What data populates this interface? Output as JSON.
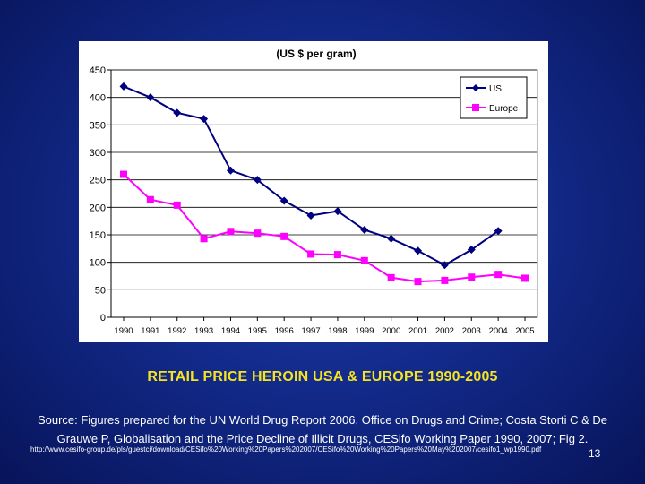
{
  "chart_data": {
    "type": "line",
    "title": "(US $ per gram)",
    "xlabel": "",
    "ylabel": "",
    "categories": [
      "1990",
      "1991",
      "1992",
      "1993",
      "1994",
      "1995",
      "1996",
      "1997",
      "1998",
      "1999",
      "2000",
      "2001",
      "2002",
      "2003",
      "2004",
      "2005"
    ],
    "ylim": [
      0,
      450
    ],
    "yticks": [
      0,
      50,
      100,
      150,
      200,
      250,
      300,
      350,
      400,
      450
    ],
    "grid": true,
    "legend_position": "top-right",
    "series": [
      {
        "name": "US",
        "color": "#000080",
        "marker": "diamond",
        "values": [
          420,
          400,
          372,
          361,
          267,
          250,
          212,
          185,
          193,
          159,
          143,
          121,
          95,
          123,
          157,
          null
        ]
      },
      {
        "name": "Europe",
        "color": "#ff00ff",
        "marker": "square",
        "values": [
          260,
          214,
          204,
          143,
          156,
          153,
          147,
          115,
          114,
          103,
          72,
          65,
          67,
          73,
          78,
          71
        ]
      }
    ]
  },
  "caption": {
    "title": "RETAIL PRICE HEROIN USA & EUROPE 1990-2005",
    "source": "Source: Figures prepared for the UN World Drug Report 2006, Office on Drugs and Crime; Costa Storti C & De Grauwe P, Globalisation and the Price Decline of Illicit Drugs, CESifo Working Paper 1990, 2007; Fig 2.",
    "url": "http://www.cesifo-group.de/pls/guestci/download/CESifo%20Working%20Papers%202007/CESifo%20Working%20Papers%20May%202007/cesifo1_wp1990.pdf",
    "page_number": "13"
  }
}
